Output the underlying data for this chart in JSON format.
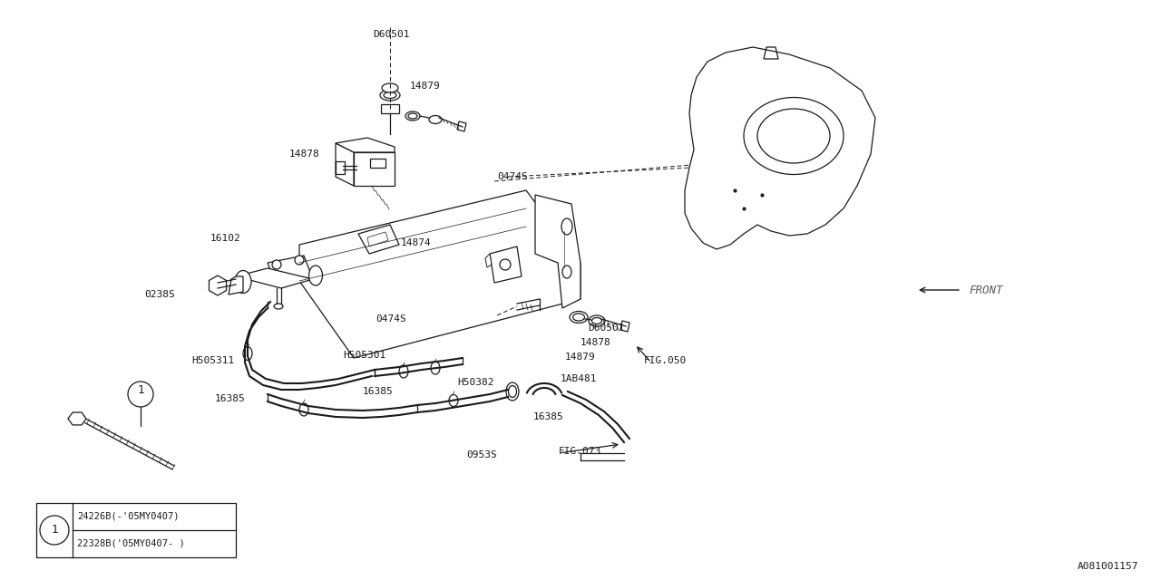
{
  "bg_color": "#ffffff",
  "line_color": "#1a1a1a",
  "fig_width": 12.8,
  "fig_height": 6.4,
  "dpi": 100,
  "doc_number": "A081001157",
  "font_family": "monospace",
  "legend_row1": "24226B(-'05MY0407)",
  "legend_row2": "22328B('05MY0407- )"
}
